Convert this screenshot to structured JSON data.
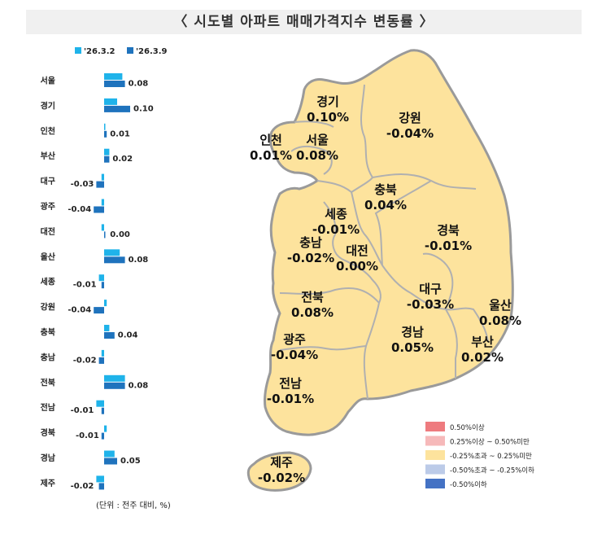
{
  "title": "〈 시도별 아파트 매매가격지수 변동률 〉",
  "units_note": "(단위 : 전주 대비, %)",
  "colors": {
    "series_prev": "#1fb3ea",
    "series_curr": "#1f73bd",
    "map_fill": "#fde39d",
    "map_border": "#9a9a9a",
    "title_bg": "#f0f0f0"
  },
  "chart_data": {
    "type": "bar",
    "orientation": "horizontal",
    "categories": [
      "서울",
      "경기",
      "인천",
      "부산",
      "대구",
      "광주",
      "대전",
      "울산",
      "세종",
      "강원",
      "충북",
      "충남",
      "전북",
      "전남",
      "경북",
      "경남",
      "제주"
    ],
    "series": [
      {
        "name": "'26.3.2",
        "values": [
          0.07,
          0.05,
          0.0,
          0.02,
          -0.01,
          -0.01,
          -0.01,
          0.06,
          -0.02,
          0.01,
          0.02,
          -0.01,
          0.08,
          -0.03,
          0.01,
          0.04,
          -0.03
        ]
      },
      {
        "name": "'26.3.9",
        "values": [
          0.08,
          0.1,
          0.01,
          0.02,
          -0.03,
          -0.04,
          0.0,
          0.08,
          -0.01,
          -0.04,
          0.04,
          -0.02,
          0.08,
          -0.01,
          -0.01,
          0.05,
          -0.02
        ]
      }
    ],
    "value_labels": [
      "0.08",
      "0.10",
      "0.01",
      "0.02",
      "-0.03",
      "-0.04",
      "0.00",
      "0.08",
      "-0.01",
      "-0.04",
      "0.04",
      "-0.02",
      "0.08",
      "-0.01",
      "-0.01",
      "0.05",
      "-0.02"
    ],
    "legend_position": "top",
    "grid": false
  },
  "map_labels": [
    {
      "name": "경기",
      "value": "0.10%"
    },
    {
      "name": "강원",
      "value": "-0.04%"
    },
    {
      "name": "인천",
      "value": "0.01%"
    },
    {
      "name": "서울",
      "value": "0.08%"
    },
    {
      "name": "충북",
      "value": "0.04%"
    },
    {
      "name": "세종",
      "value": "-0.01%"
    },
    {
      "name": "경북",
      "value": "-0.01%"
    },
    {
      "name": "충남",
      "value": "-0.02%"
    },
    {
      "name": "대전",
      "value": "0.00%"
    },
    {
      "name": "대구",
      "value": "-0.03%"
    },
    {
      "name": "울산",
      "value": "0.08%"
    },
    {
      "name": "전북",
      "value": "0.08%"
    },
    {
      "name": "광주",
      "value": "-0.04%"
    },
    {
      "name": "경남",
      "value": "0.05%"
    },
    {
      "name": "부산",
      "value": "0.02%"
    },
    {
      "name": "전남",
      "value": "-0.01%"
    },
    {
      "name": "제주",
      "value": "-0.02%"
    }
  ],
  "map_legend": [
    {
      "label": "0.50%이상",
      "color": "#ee7b7f"
    },
    {
      "label": "0.25%이상 ~ 0.50%미만",
      "color": "#f6b9ba"
    },
    {
      "label": "-0.25%초과 ~ 0.25%미만",
      "color": "#fde39d"
    },
    {
      "label": "-0.50%초과 ~ -0.25%이하",
      "color": "#bccbe8"
    },
    {
      "label": "-0.50%이하",
      "color": "#4472c4"
    }
  ]
}
